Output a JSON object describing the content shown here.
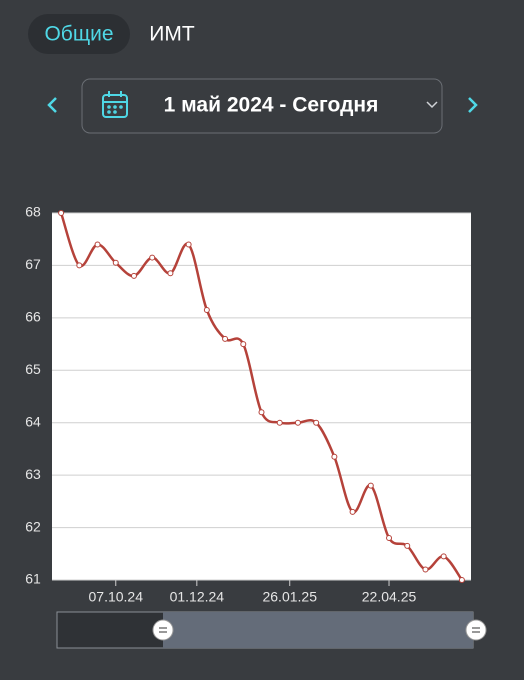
{
  "tabs": [
    "Общие",
    "ИМТ"
  ],
  "date_range": "1 май 2024 - Сегодня",
  "chart_data": {
    "type": "line",
    "x": [
      0,
      1,
      2,
      3,
      4,
      5,
      6,
      7,
      8,
      9,
      10,
      11,
      12,
      13,
      14,
      15,
      16,
      17,
      18,
      19,
      20,
      21,
      22
    ],
    "series": [
      {
        "name": null,
        "color": "#b5423a",
        "values": [
          68,
          67.0,
          67.4,
          67.05,
          66.8,
          67.15,
          66.85,
          67.4,
          66.15,
          65.6,
          65.5,
          64.2,
          64.0,
          64.0,
          64.0,
          63.35,
          62.3,
          62.8,
          61.8,
          61.65,
          61.2,
          61.45,
          61.0
        ]
      }
    ],
    "xlim": [
      -0.5,
      22.5
    ],
    "xticks": [
      {
        "value": 3,
        "label": "07.10.24"
      },
      {
        "value": 7.45,
        "label": "01.12.24"
      },
      {
        "value": 12.55,
        "label": "26.01.25"
      },
      {
        "value": 18,
        "label": "22.04.25"
      }
    ],
    "ylim": [
      61,
      68
    ],
    "yticks": [
      61,
      62,
      63,
      64,
      65,
      66,
      67,
      68
    ],
    "grid": true
  }
}
